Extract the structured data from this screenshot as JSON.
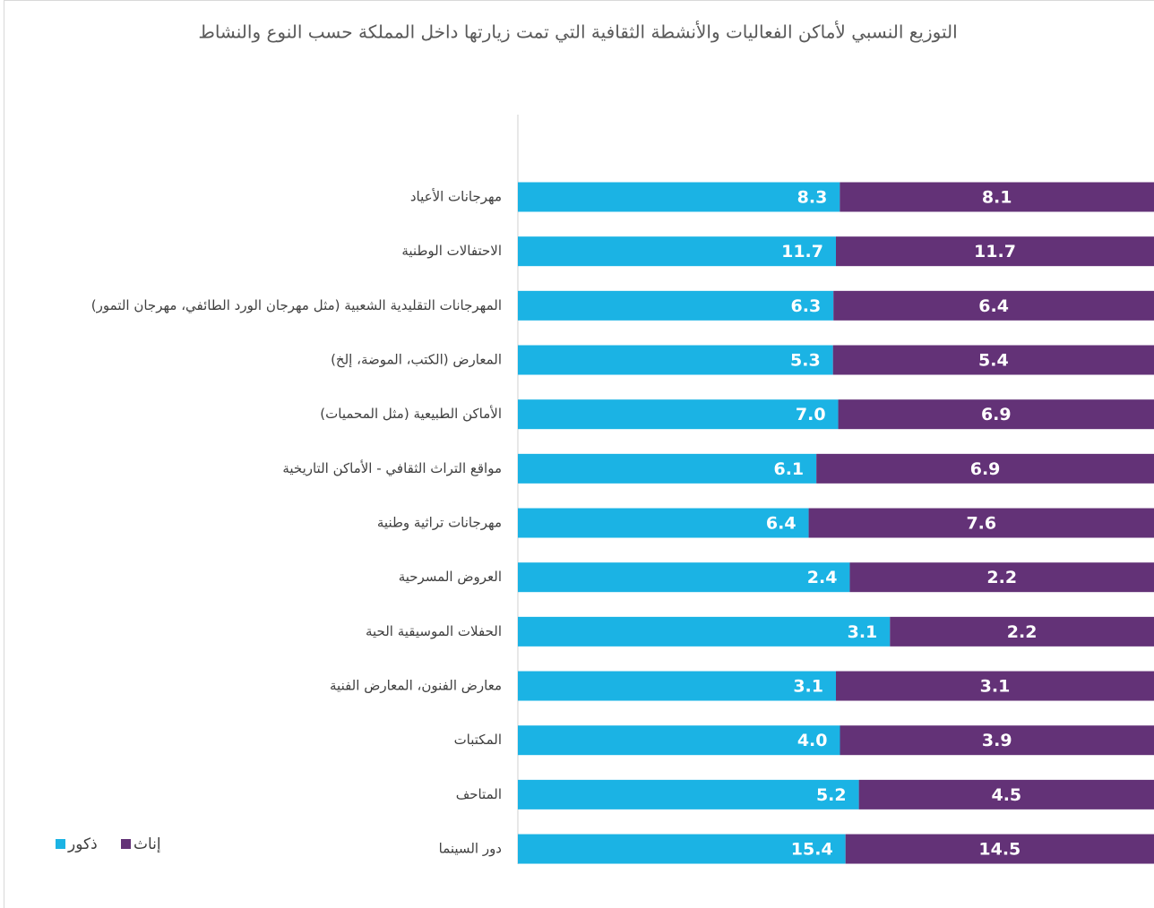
{
  "chart_data": {
    "type": "bar_percent_stacked",
    "orientation": "horizontal",
    "title": "التوزيع النسبي لأماكن الفعاليات والأنشطة الثقافية التي تمت زيارتها داخل المملكة حسب النوع والنشاط",
    "categories": [
      "مهرجانات الأعياد",
      "الاحتفالات الوطنية",
      "المهرجانات التقليدية الشعبية  (مثل مهرجان الورد الطائفي، مهرجان التمور)",
      "المعارض (الكتب، الموضة، إلخ)",
      "الأماكن الطبيعية (مثل المحميات)",
      "مواقع التراث الثقافي - الأماكن التاريخية",
      "مهرجانات تراثية وطنية",
      "العروض المسرحية",
      "الحفلات الموسيقية الحية",
      "معارض الفنون، المعارض الفنية",
      "المكتبات",
      "المتاحف",
      "دور السينما"
    ],
    "series": [
      {
        "name": "ذكور",
        "color": "#1bb3e4",
        "values": [
          8.3,
          11.7,
          6.3,
          5.3,
          7,
          6.1,
          6.4,
          2.4,
          3.1,
          3.1,
          4,
          5.2,
          15.4
        ],
        "value_labels": [
          "8.3",
          "11.7",
          "6.3",
          "5.3",
          "7.0",
          "6.1",
          "6.4",
          "2.4",
          "3.1",
          "3.1",
          "4.0",
          "5.2",
          "15.4"
        ]
      },
      {
        "name": "إناث",
        "color": "#633277",
        "values": [
          8.1,
          11.7,
          6.4,
          5.4,
          6.9,
          6.9,
          7.6,
          2.2,
          2.2,
          3.1,
          3.9,
          4.5,
          14.5
        ],
        "value_labels": [
          "8.1",
          "11.7",
          "6.4",
          "5.4",
          "6.9",
          "6.9",
          "7.6",
          "2.2",
          "2.2",
          "3.1",
          "3.9",
          "4.5",
          "14.5"
        ]
      }
    ],
    "legend": "bottom-left"
  }
}
